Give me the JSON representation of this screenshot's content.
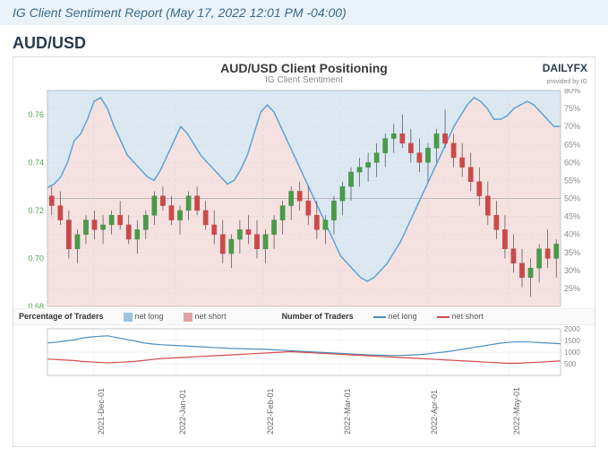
{
  "header": {
    "report_title": "IG Client Sentiment Report (May 17, 2022 12:01 PM -04:00)"
  },
  "pair": "AUD/USD",
  "chart": {
    "title": "AUD/USD Client Positioning",
    "subtitle": "IG Client Sentiment",
    "type": "candlestick+area+line",
    "logo_main": "DAILYFX",
    "logo_sub": "provided by IG",
    "background_color": "#ffffff",
    "grid_color": "#d9d9d9",
    "grid_dash": "4 3",
    "left_axis": {
      "label_color": "#5a9e5a",
      "min": 0.68,
      "max": 0.77,
      "ticks": [
        0.68,
        0.7,
        0.72,
        0.74,
        0.76
      ],
      "fontsize": 9
    },
    "right_axis": {
      "label_color": "#888888",
      "min": 20,
      "max": 80,
      "ticks": [
        25,
        30,
        35,
        40,
        45,
        50,
        55,
        60,
        65,
        70,
        75,
        80
      ],
      "suffix": "%",
      "fontsize": 9
    },
    "x_axis": {
      "labels": [
        "2021-Dec-01",
        "2022-Jan-01",
        "2022-Feb-01",
        "2022-Mar-01",
        "2022-Apr-01",
        "2022-May-01"
      ],
      "positions_pct": [
        9,
        25,
        42,
        57,
        74,
        90
      ],
      "fontsize": 9,
      "color": "#666666"
    },
    "ref_line": {
      "value": 50,
      "color": "#bbbbbb"
    },
    "sentiment_series": {
      "long_pct": [
        53,
        54,
        56,
        60,
        66,
        68,
        72,
        77,
        78,
        75,
        70,
        66,
        62,
        60,
        58,
        56,
        55,
        58,
        62,
        66,
        70,
        68,
        65,
        62,
        60,
        58,
        56,
        54,
        55,
        58,
        62,
        68,
        74,
        76,
        74,
        70,
        66,
        62,
        58,
        54,
        50,
        46,
        42,
        38,
        34,
        32,
        30,
        28,
        27,
        28,
        30,
        32,
        35,
        38,
        42,
        46,
        50,
        54,
        58,
        62,
        66,
        70,
        73,
        76,
        78,
        77,
        75,
        72,
        72,
        73,
        75,
        76,
        77,
        76,
        74,
        72,
        70,
        70
      ],
      "long_fill": "#dbe8f2",
      "short_fill": "#f6e1e1",
      "line_color": "#5ba4d4",
      "line_width": 1.5
    },
    "candles": {
      "up_color": "#4a9a4a",
      "down_color": "#c94a4a",
      "wick_color": "#4a4a4a",
      "data": [
        [
          0.726,
          0.73,
          0.718,
          0.722
        ],
        [
          0.722,
          0.728,
          0.714,
          0.716
        ],
        [
          0.716,
          0.72,
          0.7,
          0.704
        ],
        [
          0.704,
          0.712,
          0.698,
          0.71
        ],
        [
          0.71,
          0.718,
          0.706,
          0.716
        ],
        [
          0.716,
          0.72,
          0.708,
          0.712
        ],
        [
          0.712,
          0.718,
          0.706,
          0.714
        ],
        [
          0.714,
          0.72,
          0.71,
          0.718
        ],
        [
          0.718,
          0.724,
          0.712,
          0.714
        ],
        [
          0.714,
          0.718,
          0.706,
          0.708
        ],
        [
          0.708,
          0.716,
          0.702,
          0.712
        ],
        [
          0.712,
          0.72,
          0.708,
          0.718
        ],
        [
          0.718,
          0.728,
          0.714,
          0.726
        ],
        [
          0.726,
          0.73,
          0.72,
          0.722
        ],
        [
          0.722,
          0.726,
          0.714,
          0.716
        ],
        [
          0.716,
          0.722,
          0.71,
          0.72
        ],
        [
          0.72,
          0.728,
          0.716,
          0.726
        ],
        [
          0.726,
          0.73,
          0.718,
          0.72
        ],
        [
          0.72,
          0.724,
          0.712,
          0.714
        ],
        [
          0.714,
          0.72,
          0.706,
          0.71
        ],
        [
          0.71,
          0.716,
          0.698,
          0.702
        ],
        [
          0.702,
          0.71,
          0.696,
          0.708
        ],
        [
          0.708,
          0.716,
          0.702,
          0.712
        ],
        [
          0.712,
          0.718,
          0.706,
          0.71
        ],
        [
          0.71,
          0.716,
          0.7,
          0.704
        ],
        [
          0.704,
          0.712,
          0.698,
          0.71
        ],
        [
          0.71,
          0.718,
          0.704,
          0.716
        ],
        [
          0.716,
          0.724,
          0.71,
          0.722
        ],
        [
          0.722,
          0.73,
          0.716,
          0.728
        ],
        [
          0.728,
          0.732,
          0.72,
          0.724
        ],
        [
          0.724,
          0.73,
          0.714,
          0.718
        ],
        [
          0.718,
          0.724,
          0.708,
          0.712
        ],
        [
          0.712,
          0.718,
          0.706,
          0.716
        ],
        [
          0.716,
          0.726,
          0.71,
          0.724
        ],
        [
          0.724,
          0.732,
          0.718,
          0.73
        ],
        [
          0.73,
          0.738,
          0.724,
          0.736
        ],
        [
          0.736,
          0.742,
          0.73,
          0.738
        ],
        [
          0.738,
          0.744,
          0.732,
          0.74
        ],
        [
          0.74,
          0.748,
          0.734,
          0.744
        ],
        [
          0.744,
          0.752,
          0.738,
          0.75
        ],
        [
          0.75,
          0.756,
          0.744,
          0.752
        ],
        [
          0.752,
          0.76,
          0.746,
          0.748
        ],
        [
          0.748,
          0.754,
          0.74,
          0.744
        ],
        [
          0.744,
          0.75,
          0.736,
          0.74
        ],
        [
          0.74,
          0.748,
          0.732,
          0.746
        ],
        [
          0.746,
          0.754,
          0.74,
          0.752
        ],
        [
          0.752,
          0.762,
          0.746,
          0.748
        ],
        [
          0.748,
          0.752,
          0.738,
          0.742
        ],
        [
          0.742,
          0.748,
          0.734,
          0.738
        ],
        [
          0.738,
          0.744,
          0.728,
          0.732
        ],
        [
          0.732,
          0.738,
          0.722,
          0.726
        ],
        [
          0.726,
          0.732,
          0.714,
          0.718
        ],
        [
          0.718,
          0.724,
          0.708,
          0.712
        ],
        [
          0.712,
          0.718,
          0.7,
          0.704
        ],
        [
          0.704,
          0.71,
          0.694,
          0.698
        ],
        [
          0.698,
          0.704,
          0.688,
          0.692
        ],
        [
          0.692,
          0.7,
          0.684,
          0.696
        ],
        [
          0.696,
          0.706,
          0.69,
          0.704
        ],
        [
          0.704,
          0.712,
          0.696,
          0.7
        ],
        [
          0.7,
          0.708,
          0.692,
          0.706
        ]
      ]
    }
  },
  "legend": {
    "percentage_label": "Percentage of Traders",
    "number_label": "Number of Traders",
    "net_long": "net long",
    "net_short": "net short",
    "long_swatch": "#9cc3de",
    "short_swatch": "#e2a3a3",
    "long_line": "#4a8ec2",
    "short_line": "#d24a4a"
  },
  "lower_chart": {
    "type": "line",
    "y_min": 0,
    "y_max": 2000,
    "y_ticks": [
      500,
      1000,
      1500,
      2000
    ],
    "y_label_color": "#888888",
    "y_fontsize": 8,
    "long_color": "#4a8ec2",
    "short_color": "#d24a4a",
    "line_width": 1.2,
    "net_long": [
      1400,
      1420,
      1480,
      1520,
      1600,
      1650,
      1680,
      1700,
      1620,
      1550,
      1480,
      1400,
      1350,
      1320,
      1300,
      1280,
      1260,
      1240,
      1220,
      1200,
      1180,
      1160,
      1150,
      1140,
      1130,
      1120,
      1100,
      1080,
      1060,
      1040,
      1020,
      1000,
      980,
      960,
      940,
      920,
      900,
      880,
      870,
      860,
      850,
      860,
      880,
      900,
      940,
      980,
      1020,
      1080,
      1140,
      1200,
      1260,
      1320,
      1380,
      1420,
      1440,
      1440,
      1420,
      1400,
      1380,
      1360
    ],
    "net_short": [
      700,
      680,
      660,
      640,
      600,
      580,
      560,
      540,
      560,
      580,
      600,
      640,
      680,
      720,
      740,
      760,
      780,
      800,
      820,
      840,
      860,
      880,
      900,
      920,
      940,
      960,
      980,
      1000,
      1020,
      1000,
      980,
      960,
      940,
      920,
      900,
      880,
      860,
      840,
      820,
      800,
      780,
      760,
      740,
      720,
      700,
      680,
      660,
      640,
      620,
      600,
      580,
      560,
      540,
      520,
      520,
      540,
      560,
      580,
      600,
      620
    ]
  }
}
